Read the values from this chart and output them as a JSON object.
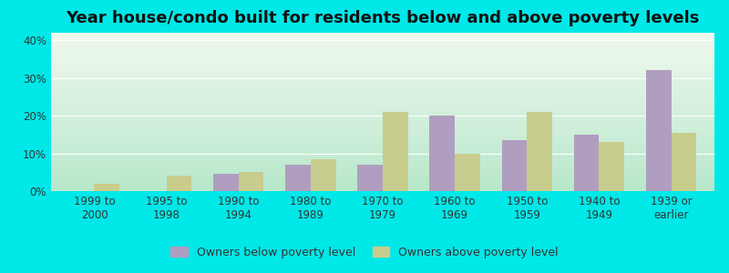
{
  "title": "Year house/condo built for residents below and above poverty levels",
  "categories": [
    "1999 to\n2000",
    "1995 to\n1998",
    "1990 to\n1994",
    "1980 to\n1989",
    "1970 to\n1979",
    "1960 to\n1969",
    "1950 to\n1959",
    "1940 to\n1949",
    "1939 or\nearlier"
  ],
  "below_poverty": [
    0.0,
    0.0,
    4.5,
    7.0,
    7.0,
    20.0,
    13.5,
    15.0,
    32.0
  ],
  "above_poverty": [
    2.0,
    4.0,
    5.0,
    8.5,
    21.0,
    10.0,
    21.0,
    13.0,
    15.5
  ],
  "below_color": "#b09ec0",
  "above_color": "#c8cc8c",
  "outer_bg": "#00e8e8",
  "ylim": [
    0,
    42
  ],
  "yticks": [
    0,
    10,
    20,
    30,
    40
  ],
  "ytick_labels": [
    "0%",
    "10%",
    "20%",
    "30%",
    "40%"
  ],
  "legend_below": "Owners below poverty level",
  "legend_above": "Owners above poverty level",
  "bar_width": 0.35,
  "title_fontsize": 13,
  "tick_fontsize": 8.5,
  "legend_fontsize": 9
}
